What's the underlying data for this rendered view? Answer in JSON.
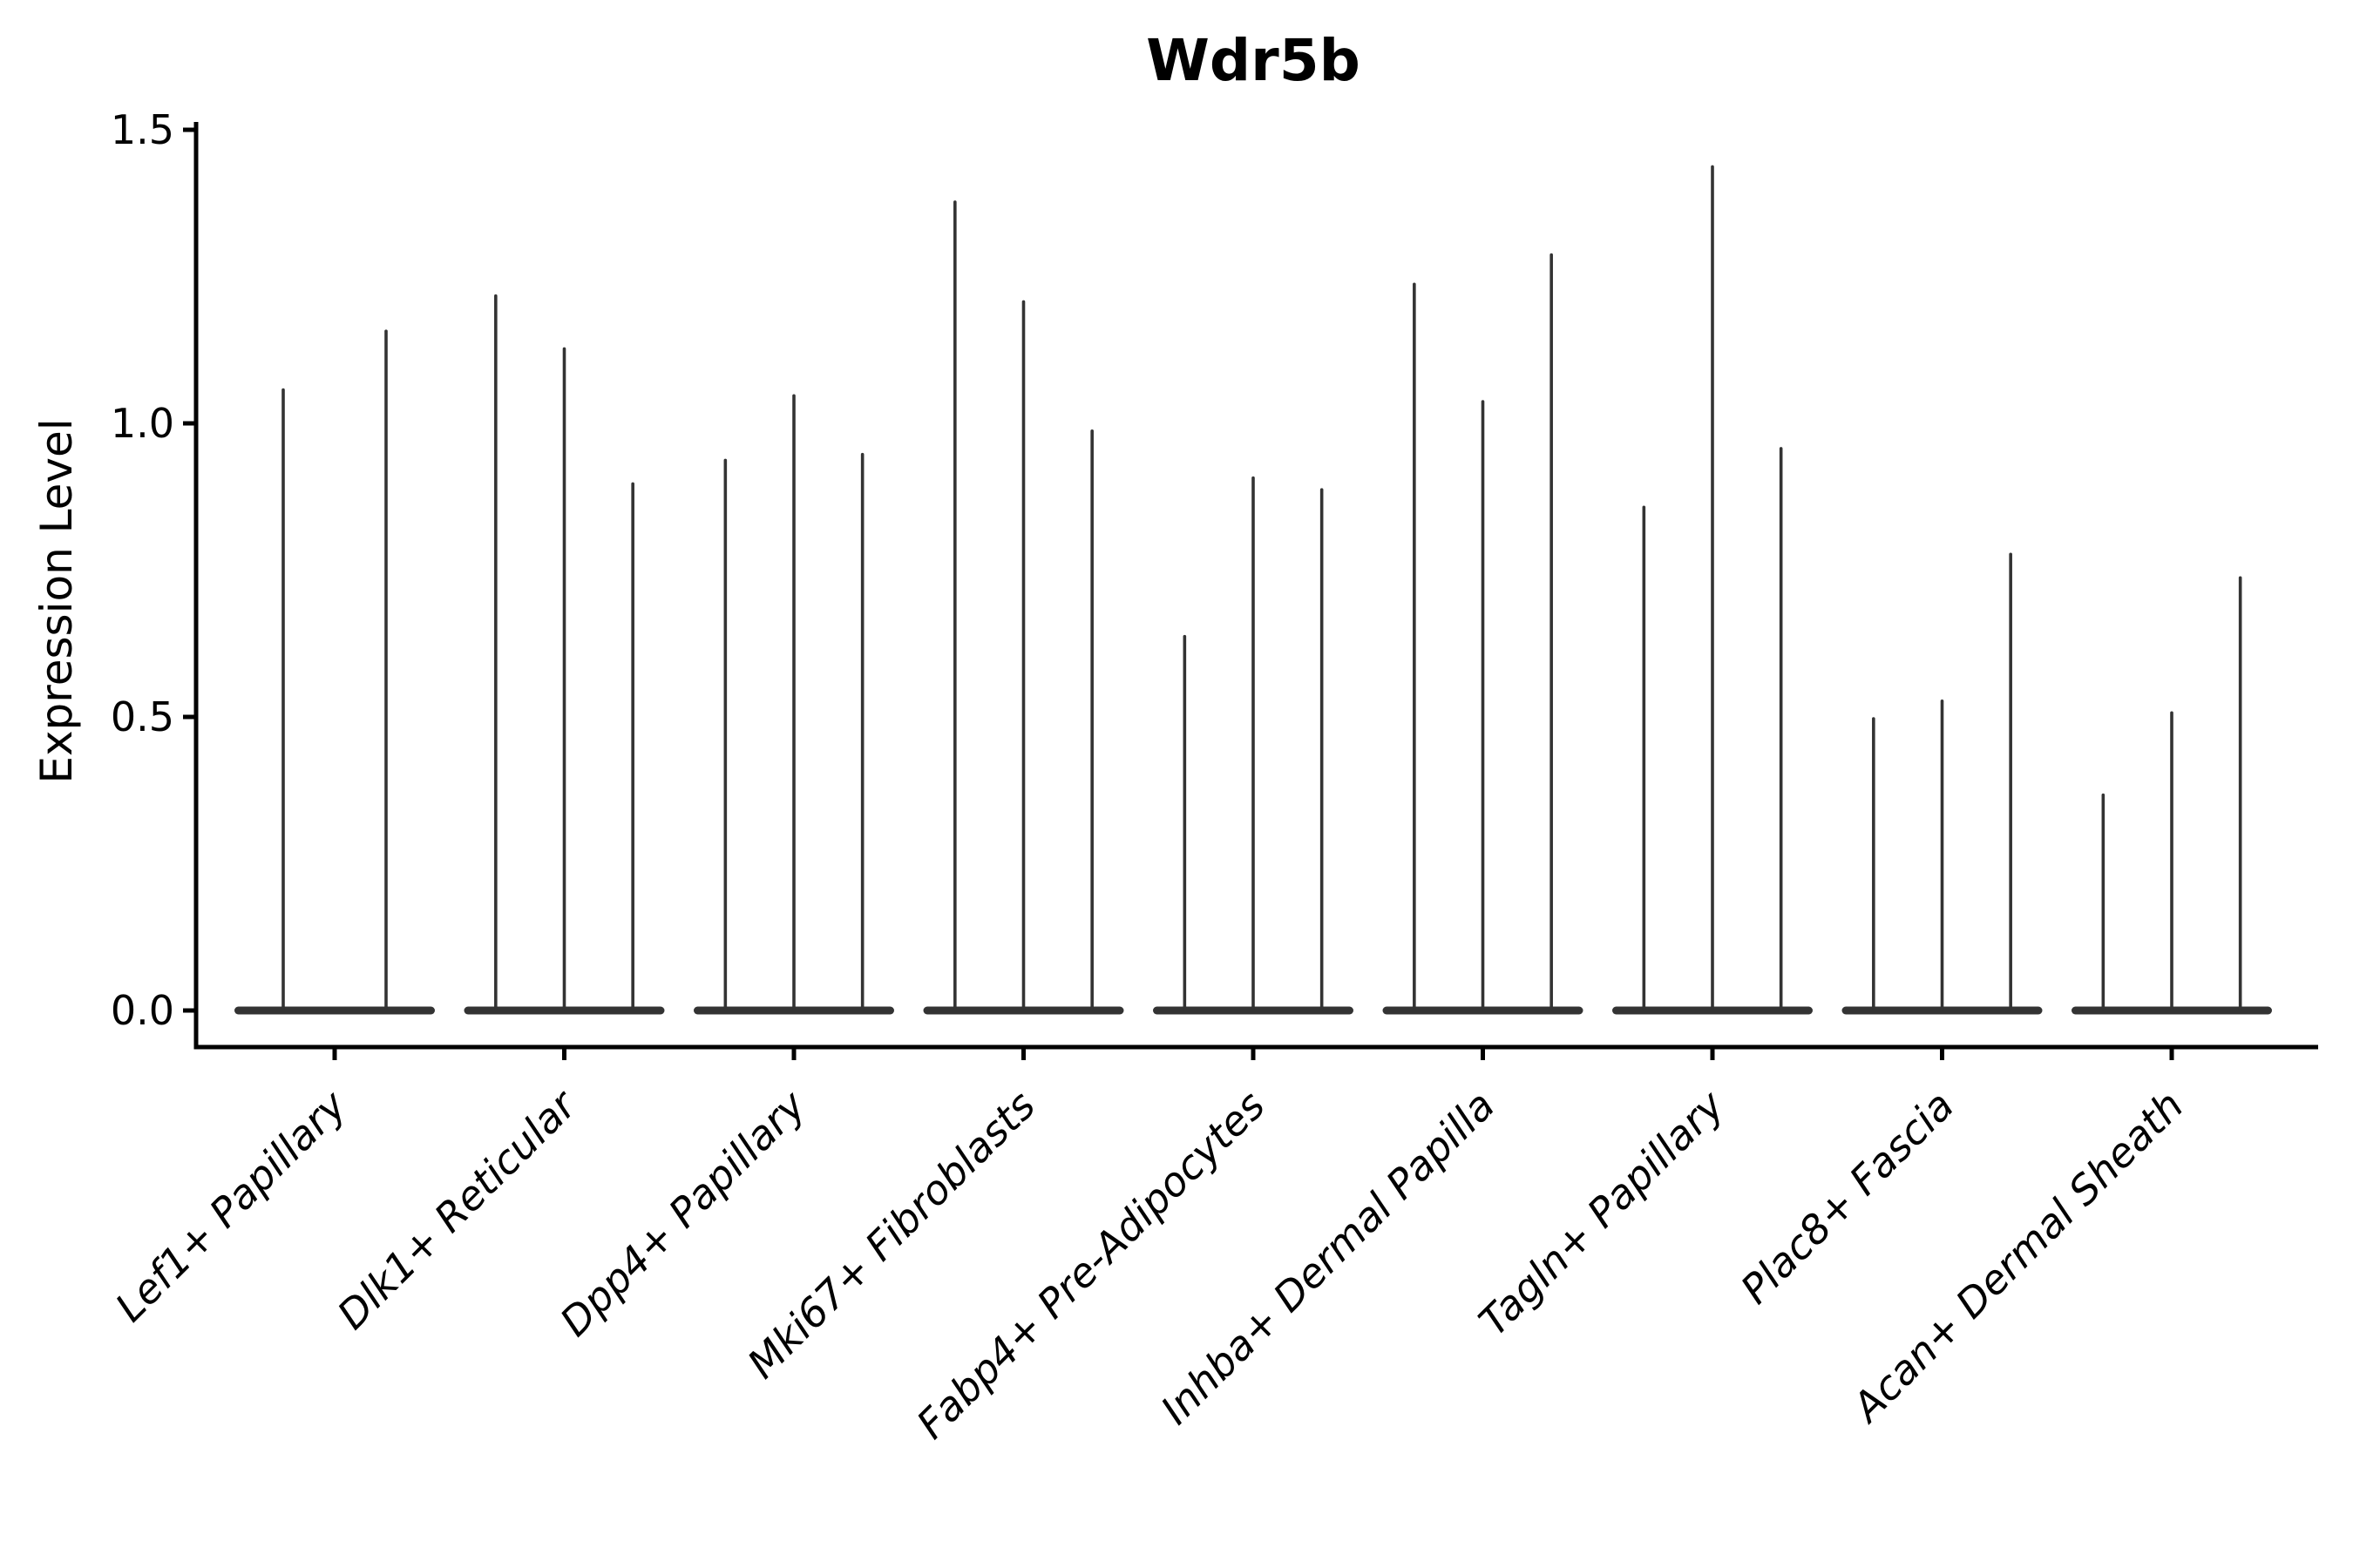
{
  "chart_data": {
    "type": "violin",
    "title": "Wdr5b",
    "xlabel": "",
    "ylabel": "Expression Level",
    "ytick_labels": [
      "0.0",
      "0.5",
      "1.0",
      "1.5"
    ],
    "ytick_values": [
      0.0,
      0.5,
      1.0,
      1.5
    ],
    "ylim": [
      0.0,
      1.55
    ],
    "grid": false,
    "legend_position": "none",
    "style_note": "sparse single-cell expression violins: wide flat base at 0 with thin vertical tail up to the max expression value",
    "categories": [
      "Lef1+ Papillary",
      "Dlk1+ Reticular",
      "Dpp4+ Papillary",
      "Mki67+ Fibroblasts",
      "Fabp4+ Pre-Adipocytes",
      "Inhba+ Dermal Papilla",
      "Tagln+ Papillary",
      "Plac8+ Fascia",
      "Acan+ Dermal Sheath"
    ],
    "groups": [
      {
        "label": "Lef1+ Papillary",
        "violin_maxima": [
          1.06,
          1.16
        ]
      },
      {
        "label": "Dlk1+ Reticular",
        "violin_maxima": [
          1.22,
          1.13,
          0.9
        ]
      },
      {
        "label": "Dpp4+ Papillary",
        "violin_maxima": [
          0.94,
          1.05,
          0.95
        ]
      },
      {
        "label": "Mki67+ Fibroblasts",
        "violin_maxima": [
          1.38,
          1.21,
          0.99
        ]
      },
      {
        "label": "Fabp4+ Pre-Adipocytes",
        "violin_maxima": [
          0.64,
          0.91,
          0.89
        ]
      },
      {
        "label": "Inhba+ Dermal Papilla",
        "violin_maxima": [
          1.24,
          1.04,
          1.29
        ]
      },
      {
        "label": "Tagln+ Papillary",
        "violin_maxima": [
          0.86,
          1.44,
          0.96
        ]
      },
      {
        "label": "Plac8+ Fascia",
        "violin_maxima": [
          0.5,
          0.53,
          0.78
        ]
      },
      {
        "label": "Acan+ Dermal Sheath",
        "violin_maxima": [
          0.37,
          0.51,
          0.74
        ]
      }
    ],
    "colors": {
      "violin": "#333333",
      "axis": "#000000",
      "text": "#000000",
      "background": "#ffffff"
    }
  }
}
